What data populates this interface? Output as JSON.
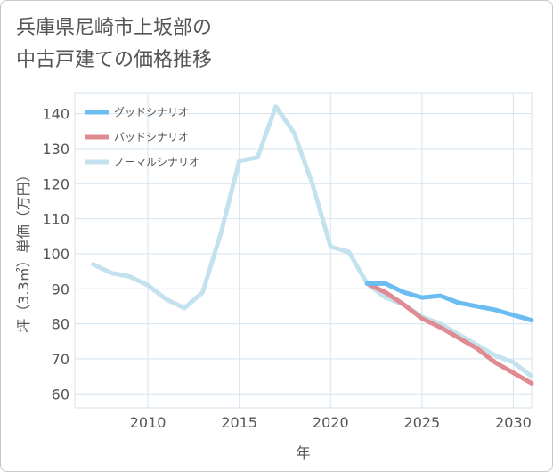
{
  "title_lines": [
    "兵庫県尼崎市上坂部の",
    "中古戸建ての価格推移"
  ],
  "colors": {
    "good": "#6bbcf0",
    "bad": "#e08a92",
    "normal": "#c3e2ee",
    "grid": "#d5e3ee",
    "text": "#555555"
  },
  "chart_data": {
    "type": "line",
    "title": "兵庫県尼崎市上坂部の中古戸建ての価格推移",
    "xlabel": "年",
    "ylabel": "坪（3.3㎡）単価（万円）",
    "xlim": [
      2006,
      2031
    ],
    "ylim": [
      56,
      146
    ],
    "xticks": [
      2010,
      2015,
      2020,
      2025,
      2030
    ],
    "yticks": [
      60,
      70,
      80,
      90,
      100,
      110,
      120,
      130,
      140
    ],
    "legend_position": "top-left",
    "series": [
      {
        "key": "good",
        "name": "グッドシナリオ",
        "x": [
          2022,
          2023,
          2024,
          2025,
          2026,
          2027,
          2028,
          2029,
          2030,
          2031
        ],
        "values": [
          91.5,
          91.5,
          89,
          87.5,
          88,
          86,
          85,
          84,
          82.5,
          81
        ]
      },
      {
        "key": "bad",
        "name": "バッドシナリオ",
        "x": [
          2022,
          2023,
          2024,
          2025,
          2026,
          2027,
          2028,
          2029,
          2030,
          2031
        ],
        "values": [
          91.5,
          89,
          85.5,
          81.5,
          79,
          76,
          73,
          69,
          66,
          63
        ]
      },
      {
        "key": "normal",
        "name": "ノーマルシナリオ",
        "x": [
          2007,
          2008,
          2009,
          2010,
          2011,
          2012,
          2013,
          2014,
          2015,
          2016,
          2017,
          2018,
          2019,
          2020,
          2021,
          2022,
          2023,
          2024,
          2025,
          2026,
          2027,
          2028,
          2029,
          2030,
          2031
        ],
        "values": [
          97,
          94.5,
          93.5,
          91,
          87,
          84.5,
          89,
          106,
          126.5,
          127.5,
          142,
          134.5,
          120,
          102,
          100.5,
          91.5,
          87.5,
          85.5,
          82,
          80,
          77,
          74,
          71,
          69,
          65
        ]
      }
    ]
  }
}
